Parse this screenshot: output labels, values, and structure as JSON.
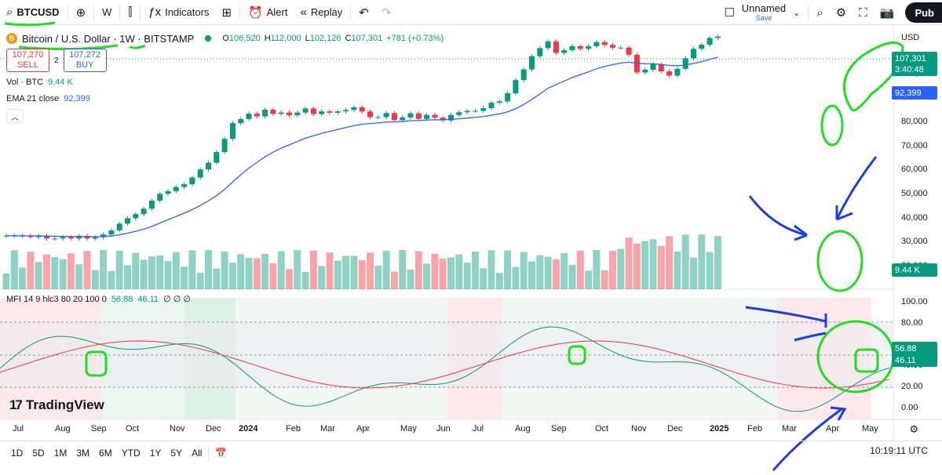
{
  "toolbar": {
    "symbol": "BTCUSD",
    "interval": "W",
    "indicators_label": "Indicators",
    "alert_label": "Alert",
    "replay_label": "Replay",
    "layout_name": "Unnamed",
    "layout_status": "Save",
    "publish_label": "Pub"
  },
  "legend": {
    "symbol_desc": "Bitcoin / U.S. Dollar · 1W · BITSTAMP",
    "btc_letter": "B",
    "o_label": "O",
    "o_value": "106,520",
    "h_label": "H",
    "h_value": "112,000",
    "l_label": "L",
    "l_value": "102,126",
    "c_label": "C",
    "c_value": "107,301",
    "change": "+781 (+0.73%)"
  },
  "trade": {
    "sell_price": "107,270",
    "sell_label": "SELL",
    "spread": "2",
    "buy_price": "107,272",
    "buy_label": "BUY"
  },
  "indicators": {
    "vol_label": "Vol · BTC",
    "vol_value": "9.44 K",
    "ema_label": "EMA 21 close",
    "ema_value": "92,399",
    "mfi_label": "MFI 14 9 hlc3 80 20 100 0",
    "mfi_value": "56.88",
    "mfi_signal": "46.11",
    "mfi_extra": "∅ ∅ ∅"
  },
  "price_axis": {
    "currency": "USD",
    "labels": [
      "100,000",
      "80,000",
      "70,000",
      "60,000",
      "50,000",
      "40,000",
      "30,000",
      "20,000"
    ],
    "last_price": "107,301",
    "countdown": "3:40:48",
    "ema_tag": "92,399",
    "volume_tag": "9.44 K"
  },
  "mfi_axis": {
    "labels": [
      "100.00",
      "80.00",
      "60.00",
      "40.00",
      "20.00",
      "0.00"
    ],
    "mfi_tag": "56.88",
    "signal_tag": "46.11"
  },
  "time_axis": {
    "labels": [
      "Jul",
      "Aug",
      "Sep",
      "Oct",
      "Nov",
      "Dec",
      "2024",
      "Feb",
      "Mar",
      "Apr",
      "May",
      "Jun",
      "Jul",
      "Aug",
      "Sep",
      "Oct",
      "Nov",
      "Dec",
      "2025",
      "Feb",
      "Mar",
      "Apr",
      "May"
    ]
  },
  "ranges": [
    "1D",
    "5D",
    "1M",
    "3M",
    "6M",
    "YTD",
    "1Y",
    "5Y",
    "All"
  ],
  "clock": "10:19:11 UTC",
  "branding": {
    "name": "TradingView"
  },
  "colors": {
    "up": "#089981",
    "down": "#f23645",
    "ema": "#2962ff",
    "annotation_green": "#22dd22",
    "annotation_blue": "#1a3fe0"
  }
}
